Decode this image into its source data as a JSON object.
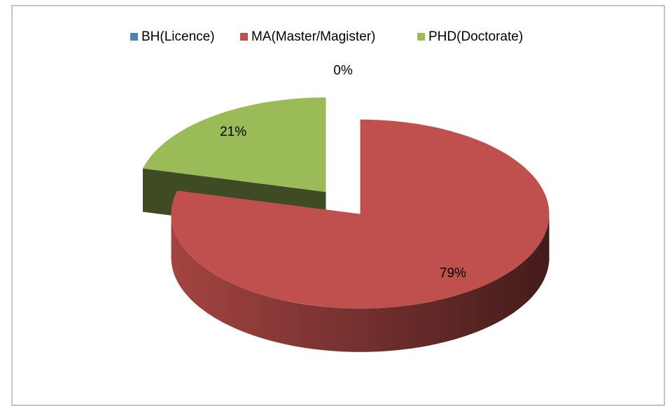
{
  "chart_data": {
    "type": "pie",
    "categories": [
      "BH(Licence)",
      "MA(Master/Magister)",
      "PHD(Doctorate)"
    ],
    "values": [
      0,
      79,
      21
    ],
    "value_labels": [
      "0%",
      "79%",
      "21%"
    ],
    "colors": [
      "#4f81bd",
      "#c0504d",
      "#9bbb59"
    ],
    "legend": "top"
  }
}
